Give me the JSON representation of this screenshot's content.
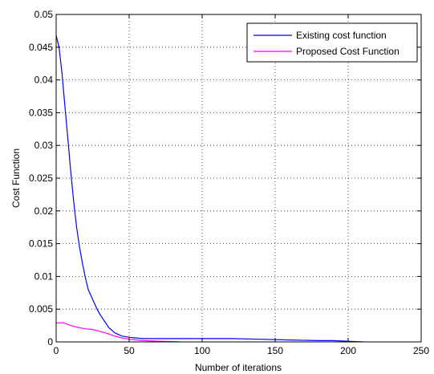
{
  "chart_data": {
    "type": "line",
    "title": "",
    "xlabel": "Number of iterations",
    "ylabel": "Cost Function",
    "xlim": [
      0,
      250
    ],
    "ylim": [
      0,
      0.05
    ],
    "x_ticks": [
      0,
      50,
      100,
      150,
      200,
      250
    ],
    "x_tick_labels": [
      "0",
      "50",
      "100",
      "150",
      "200",
      "250"
    ],
    "y_ticks": [
      0,
      0.005,
      0.01,
      0.015,
      0.02,
      0.025,
      0.03,
      0.035,
      0.04,
      0.045,
      0.05
    ],
    "y_tick_labels": [
      "0",
      "0.005",
      "0.01",
      "0.015",
      "0.02",
      "0.025",
      "0.03",
      "0.035",
      "0.04",
      "0.045",
      "0.05"
    ],
    "grid": true,
    "legend_position": "top-right",
    "series": [
      {
        "name": "Existing cost function",
        "color": "#0000ff",
        "x": [
          0,
          2,
          4,
          6,
          8,
          10,
          12,
          14,
          16,
          18,
          20,
          22,
          25,
          28,
          30,
          33,
          36,
          40,
          45,
          50,
          55,
          60,
          70,
          80,
          100,
          120,
          140,
          160,
          180,
          190,
          200,
          210
        ],
        "y": [
          0.0468,
          0.045,
          0.041,
          0.036,
          0.031,
          0.026,
          0.0215,
          0.0175,
          0.0145,
          0.012,
          0.0098,
          0.008,
          0.0065,
          0.005,
          0.0042,
          0.0032,
          0.0022,
          0.0014,
          0.0009,
          0.0007,
          0.0006,
          0.0005,
          0.0005,
          0.0005,
          0.0005,
          0.0005,
          0.0004,
          0.0003,
          0.0002,
          0.0002,
          0.0001,
          0.0
        ]
      },
      {
        "name": "Proposed Cost Function",
        "color": "#ff00ff",
        "x": [
          0,
          5,
          10,
          15,
          20,
          25,
          30,
          35,
          40,
          45,
          50,
          55,
          60,
          70,
          80,
          85
        ],
        "y": [
          0.0029,
          0.0029,
          0.0025,
          0.0022,
          0.002,
          0.0019,
          0.0016,
          0.0013,
          0.0009,
          0.0006,
          0.0004,
          0.0003,
          0.0002,
          0.0001,
          5e-05,
          0.0
        ]
      }
    ]
  }
}
